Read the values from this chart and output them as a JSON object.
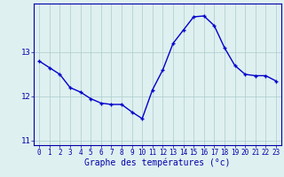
{
  "x": [
    0,
    1,
    2,
    3,
    4,
    5,
    6,
    7,
    8,
    9,
    10,
    11,
    12,
    13,
    14,
    15,
    16,
    17,
    18,
    19,
    20,
    21,
    22,
    23
  ],
  "y": [
    12.8,
    12.65,
    12.5,
    12.2,
    12.1,
    11.95,
    11.85,
    11.82,
    11.82,
    11.65,
    11.5,
    12.15,
    12.6,
    13.2,
    13.5,
    13.8,
    13.82,
    13.6,
    13.1,
    12.7,
    12.5,
    12.47,
    12.47,
    12.35
  ],
  "line_color": "#0000cc",
  "marker": "+",
  "bg_color": "#dff0f0",
  "grid_color": "#aacccc",
  "axis_color": "#0000aa",
  "xlabel": "Graphe des températures (°c)",
  "xlabel_fontsize": 7,
  "ylim": [
    10.9,
    14.1
  ],
  "xlim": [
    -0.5,
    23.5
  ],
  "yticks": [
    11,
    12,
    13
  ],
  "xticks": [
    0,
    1,
    2,
    3,
    4,
    5,
    6,
    7,
    8,
    9,
    10,
    11,
    12,
    13,
    14,
    15,
    16,
    17,
    18,
    19,
    20,
    21,
    22,
    23
  ],
  "tick_fontsize": 5.5,
  "linewidth": 1.0,
  "markersize": 3
}
